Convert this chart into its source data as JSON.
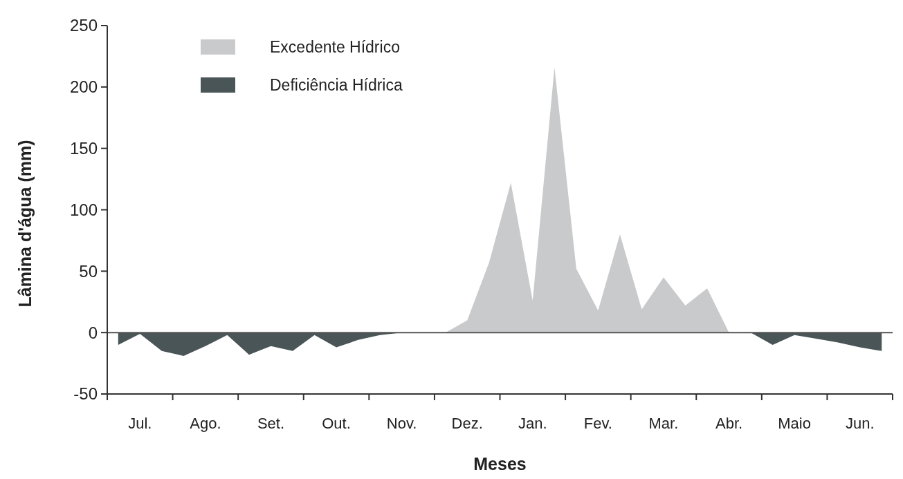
{
  "chart_data": {
    "type": "area",
    "xlabel": "Meses",
    "ylabel": "Lâmina d'água (mm)",
    "categories": [
      null,
      "Jul.",
      null,
      null,
      "Ago.",
      null,
      null,
      "Set.",
      null,
      null,
      "Out.",
      null,
      null,
      "Nov.",
      null,
      null,
      "Dez.",
      null,
      null,
      "Jan.",
      null,
      null,
      "Fev.",
      null,
      null,
      "Mar.",
      null,
      null,
      "Abr.",
      null,
      null,
      "Maio",
      null,
      null,
      "Jun.",
      null
    ],
    "series": [
      {
        "name": "Excedente Hídrico",
        "color": "#c9cacc",
        "values": [
          0,
          0,
          0,
          0,
          0,
          0,
          0,
          0,
          0,
          0,
          0,
          0,
          0,
          0,
          0,
          0,
          10,
          57,
          122,
          26,
          216,
          52,
          18,
          80,
          19,
          45,
          22,
          36,
          0,
          0,
          0,
          0,
          0,
          0,
          0,
          0
        ]
      },
      {
        "name": "Deficiência Hídrica",
        "color": "#4a5557",
        "values": [
          -10,
          -1,
          -15,
          -19,
          -11,
          -2,
          -18,
          -11,
          -15,
          -2,
          -12,
          -6,
          -2,
          0,
          0,
          0,
          0,
          0,
          0,
          0,
          0,
          0,
          0,
          0,
          0,
          0,
          0,
          0,
          0,
          0,
          -10,
          -2,
          -5,
          -8,
          -12,
          -15
        ]
      }
    ],
    "ylim": [
      -50,
      250
    ],
    "yticks": [
      -50,
      0,
      50,
      100,
      150,
      200,
      250
    ],
    "ref_lines": [
      {
        "axis": "y",
        "value": 0,
        "color": "#555555"
      }
    ],
    "legend": "top left"
  }
}
